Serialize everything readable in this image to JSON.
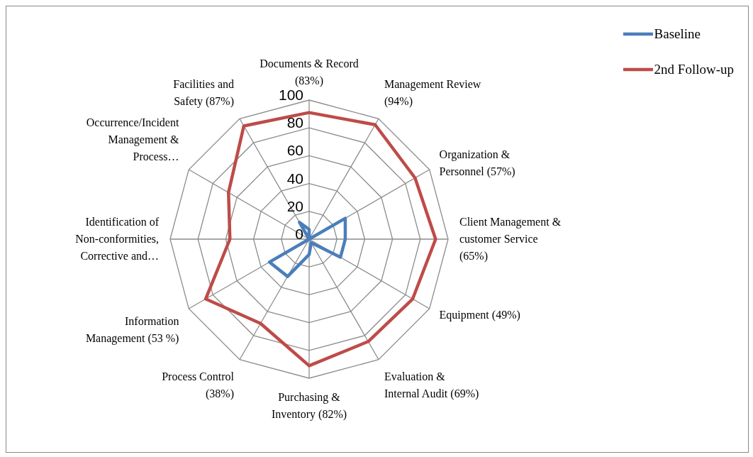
{
  "chart_data": {
    "type": "radar",
    "categories": [
      "Documents & Record (83%)",
      "Management Review (94%)",
      "Organization & Personnel (57%)",
      "Client Management & customer Service (65%)",
      "Equipment (49%)",
      "Evaluation & Internal Audit (69%)",
      "Purchasing & Inventory (82%)",
      "Process Control (38%)",
      "Information Management (53 %)",
      "Identification of Non-conformities, Corrective and…",
      "Occurrence/Incident Management & Process…",
      "Facilities and Safety (87%)"
    ],
    "series": [
      {
        "name": "Baseline",
        "color": "#4a7ebb",
        "values": [
          7,
          0,
          30,
          26,
          26,
          3,
          11,
          31,
          33,
          0,
          0,
          14
        ]
      },
      {
        "name": "2nd Follow-up",
        "color": "#be4b48",
        "values": [
          91,
          95,
          88,
          91,
          86,
          85,
          91,
          70,
          86,
          57,
          67,
          94
        ]
      }
    ],
    "ylim": [
      0,
      100
    ],
    "yticks": [
      0,
      20,
      40,
      60,
      80,
      100
    ],
    "grid": true,
    "legend": "top right",
    "marker": "none",
    "line_style": "solid"
  }
}
